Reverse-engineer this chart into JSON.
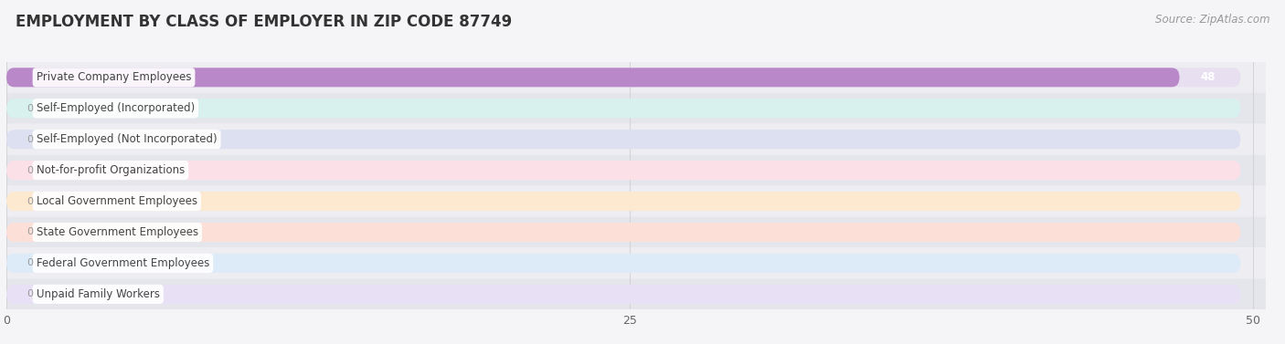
{
  "title": "EMPLOYMENT BY CLASS OF EMPLOYER IN ZIP CODE 87749",
  "source": "Source: ZipAtlas.com",
  "categories": [
    "Private Company Employees",
    "Self-Employed (Incorporated)",
    "Self-Employed (Not Incorporated)",
    "Not-for-profit Organizations",
    "Local Government Employees",
    "State Government Employees",
    "Federal Government Employees",
    "Unpaid Family Workers"
  ],
  "values": [
    48,
    0,
    0,
    0,
    0,
    0,
    0,
    0
  ],
  "bar_colors": [
    "#b888c8",
    "#70c8c4",
    "#b0b8e0",
    "#f090aa",
    "#f8c898",
    "#f0a898",
    "#a8c8e8",
    "#c8b8e0"
  ],
  "bar_bg_colors": [
    "#e8e0f0",
    "#d8f0ee",
    "#dde0f0",
    "#fce0e8",
    "#fde8d0",
    "#fce0d8",
    "#ddeaf8",
    "#e8e0f4"
  ],
  "xlim": [
    0,
    50.5
  ],
  "xticks": [
    0,
    25,
    50
  ],
  "background_color": "#f5f5f8",
  "row_bg_light": "#f0f0f5",
  "row_bg_dark": "#e8e8f0",
  "value_label_color_bar": "#ffffff",
  "value_label_color_zero": "#999999",
  "title_fontsize": 12,
  "source_fontsize": 8.5,
  "bar_height": 0.62,
  "figsize": [
    14.06,
    3.77
  ],
  "dpi": 100
}
